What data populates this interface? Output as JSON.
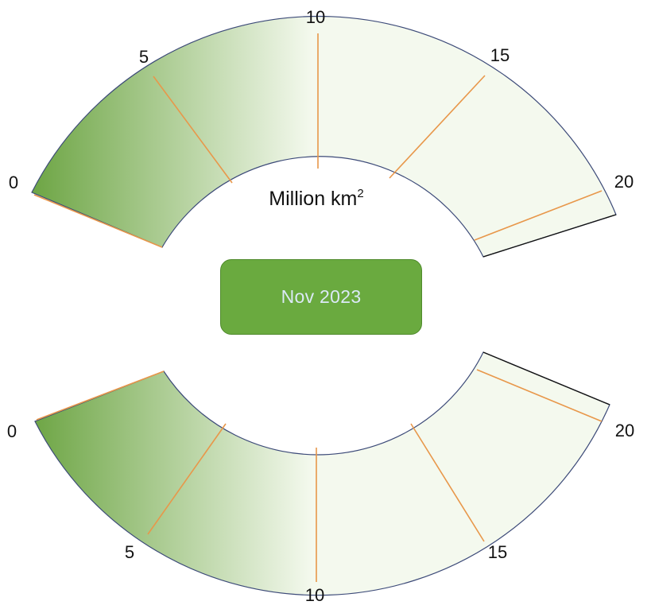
{
  "unit_label": {
    "base": "Million km",
    "exponent": "2"
  },
  "date_badge": {
    "label": "Nov 2023"
  },
  "upper_gauge": {
    "min": 0,
    "max": 20,
    "value": 10,
    "ticks": [
      "0",
      "5",
      "10",
      "15",
      "20"
    ]
  },
  "lower_gauge": {
    "min": 0,
    "max": 20,
    "value": 10,
    "ticks": [
      "0",
      "5",
      "10",
      "15",
      "20"
    ]
  },
  "colors": {
    "fill_dark": "#6da544",
    "fill_light": "#f4f9ee",
    "outline": "#3c4a78",
    "tick_line": "#e8974a",
    "badge": "#6aaa3f",
    "badge_text": "#dbe9f6"
  }
}
